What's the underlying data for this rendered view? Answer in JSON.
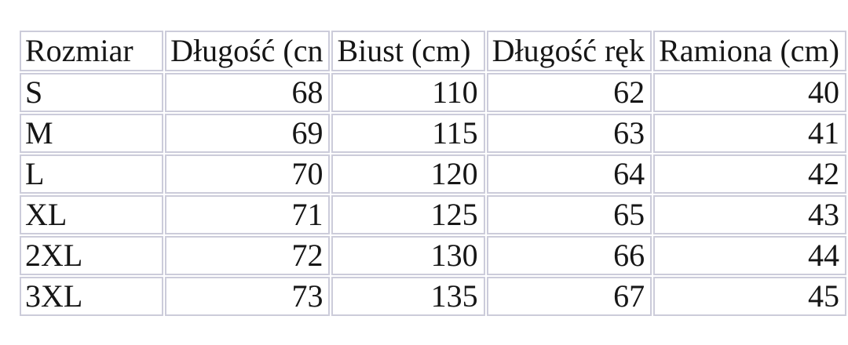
{
  "chart_data": {
    "type": "table",
    "title": "",
    "columns": [
      "Rozmiar",
      "Długość (cn",
      "Biust (cm)",
      "Długość ręk",
      "Ramiona (cm)"
    ],
    "rows": [
      [
        "S",
        "68",
        "110",
        "62",
        "40"
      ],
      [
        "M",
        "69",
        "115",
        "63",
        "41"
      ],
      [
        "L",
        "70",
        "120",
        "64",
        "42"
      ],
      [
        "XL",
        "71",
        "125",
        "65",
        "43"
      ],
      [
        "2XL",
        "72",
        "130",
        "66",
        "44"
      ],
      [
        "3XL",
        "73",
        "135",
        "67",
        "45"
      ]
    ],
    "layout": {
      "grid": "separated-cell-borders",
      "border_color": "#ccccda",
      "text_color": "#161616",
      "background": "#ffffff",
      "header_bold": false,
      "value_alignment": "right",
      "size_alignment": "left"
    }
  }
}
